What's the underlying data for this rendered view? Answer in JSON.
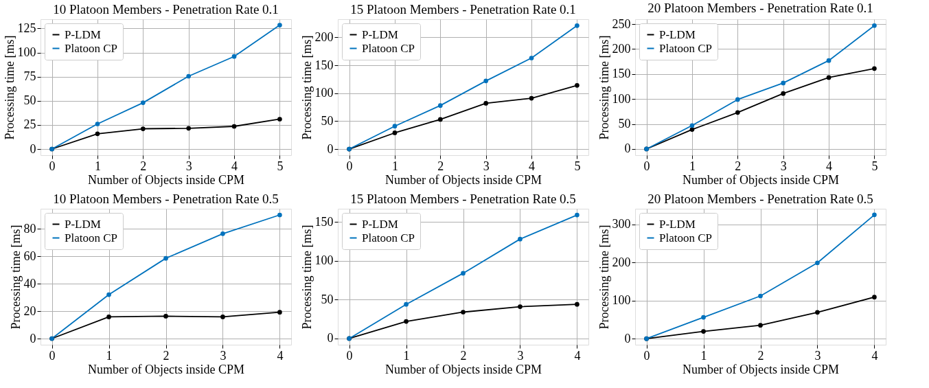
{
  "chart_data": [
    {
      "type": "line",
      "title": "10 Platoon Members - Penetration Rate 0.1",
      "xlabel": "Number of Objects inside CPM",
      "ylabel": "Processing time [ms]",
      "x": [
        0,
        1,
        2,
        3,
        4,
        5
      ],
      "xlim": [
        -0.25,
        5.25
      ],
      "xticks": [
        0,
        1,
        2,
        3,
        4,
        5
      ],
      "ylim": [
        -6.4,
        134.6
      ],
      "yticks": [
        0,
        25,
        50,
        75,
        100,
        125
      ],
      "grid": true,
      "legend": "top left",
      "marker": "circle",
      "line_style": "solid",
      "series": [
        {
          "name": "P-LDM",
          "color": "#000000",
          "values": [
            0,
            15.8,
            21,
            21.5,
            23.5,
            31
          ]
        },
        {
          "name": "Platoon CP",
          "color": "#0072bd",
          "values": [
            0,
            26,
            48,
            75.5,
            96,
            128.5
          ]
        }
      ]
    },
    {
      "type": "line",
      "title": "15 Platoon Members - Penetration Rate 0.1",
      "xlabel": "Number of Objects inside CPM",
      "ylabel": "Processing time [ms]",
      "x": [
        0,
        1,
        2,
        3,
        4,
        5
      ],
      "xlim": [
        -0.25,
        5.25
      ],
      "xticks": [
        0,
        1,
        2,
        3,
        4,
        5
      ],
      "ylim": [
        -11,
        232.5
      ],
      "yticks": [
        0,
        50,
        100,
        150,
        200
      ],
      "grid": true,
      "legend": "top left",
      "marker": "circle",
      "line_style": "solid",
      "series": [
        {
          "name": "P-LDM",
          "color": "#000000",
          "values": [
            0,
            29,
            53,
            82,
            91,
            114
          ]
        },
        {
          "name": "Platoon CP",
          "color": "#0072bd",
          "values": [
            0,
            41,
            78,
            122,
            163,
            221
          ]
        }
      ]
    },
    {
      "type": "line",
      "title": "20 Platoon Members - Penetration Rate 0.1",
      "xlabel": "Number of Objects inside CPM",
      "ylabel": "Processing time [ms]",
      "x": [
        0,
        1,
        2,
        3,
        4,
        5
      ],
      "xlim": [
        -0.25,
        5.25
      ],
      "xticks": [
        0,
        1,
        2,
        3,
        4,
        5
      ],
      "ylim": [
        -12.4,
        259.7
      ],
      "yticks": [
        0,
        50,
        100,
        150,
        200,
        250
      ],
      "grid": true,
      "legend": "top left",
      "marker": "circle",
      "line_style": "solid",
      "series": [
        {
          "name": "P-LDM",
          "color": "#000000",
          "values": [
            0,
            39,
            73,
            111,
            143,
            161
          ]
        },
        {
          "name": "Platoon CP",
          "color": "#0072bd",
          "values": [
            0,
            47,
            99,
            132,
            177,
            247
          ]
        }
      ]
    },
    {
      "type": "line",
      "title": "10 Platoon Members - Penetration Rate 0.5",
      "xlabel": "Number of Objects inside CPM",
      "ylabel": "Processing time [ms]",
      "x": [
        0,
        1,
        2,
        3,
        4
      ],
      "xlim": [
        -0.2,
        4.2
      ],
      "xticks": [
        0,
        1,
        2,
        3,
        4
      ],
      "ylim": [
        -4.5,
        94.6
      ],
      "yticks": [
        0,
        20,
        40,
        60,
        80
      ],
      "grid": true,
      "legend": "top left",
      "marker": "circle",
      "line_style": "solid",
      "series": [
        {
          "name": "P-LDM",
          "color": "#000000",
          "values": [
            0,
            15.8,
            16.3,
            15.8,
            19.2
          ]
        },
        {
          "name": "Platoon CP",
          "color": "#0072bd",
          "values": [
            0,
            32,
            58.5,
            76.4,
            90.1
          ]
        }
      ]
    },
    {
      "type": "line",
      "title": "15 Platoon Members - Penetration Rate 0.5",
      "xlabel": "Number of Objects inside CPM",
      "ylabel": "Processing time [ms]",
      "x": [
        0,
        1,
        2,
        3,
        4
      ],
      "xlim": [
        -0.2,
        4.2
      ],
      "xticks": [
        0,
        1,
        2,
        3,
        4
      ],
      "ylim": [
        -8,
        167
      ],
      "yticks": [
        0,
        50,
        100,
        150
      ],
      "grid": true,
      "legend": "top left",
      "marker": "circle",
      "line_style": "solid",
      "series": [
        {
          "name": "P-LDM",
          "color": "#000000",
          "values": [
            0,
            22,
            34,
            41,
            44
          ]
        },
        {
          "name": "Platoon CP",
          "color": "#0072bd",
          "values": [
            0,
            44,
            84,
            128,
            159
          ]
        }
      ]
    },
    {
      "type": "line",
      "title": "20 Platoon Members - Penetration Rate 0.5",
      "xlabel": "Number of Objects inside CPM",
      "ylabel": "Processing time [ms]",
      "x": [
        0,
        1,
        2,
        3,
        4
      ],
      "xlim": [
        -0.2,
        4.2
      ],
      "xticks": [
        0,
        1,
        2,
        3,
        4
      ],
      "ylim": [
        -16,
        341
      ],
      "yticks": [
        0,
        100,
        200,
        300
      ],
      "grid": true,
      "legend": "top left",
      "marker": "circle",
      "line_style": "solid",
      "series": [
        {
          "name": "P-LDM",
          "color": "#000000",
          "values": [
            0,
            19,
            35,
            69,
            109
          ]
        },
        {
          "name": "Platoon CP",
          "color": "#0072bd",
          "values": [
            0,
            56,
            112,
            199,
            325
          ]
        }
      ]
    }
  ]
}
